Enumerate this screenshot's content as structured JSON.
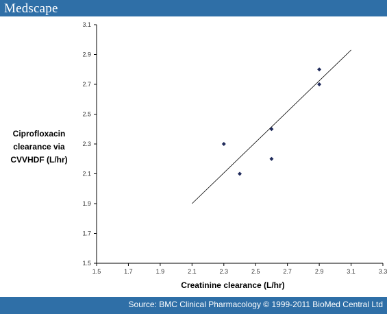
{
  "header": {
    "logo_text": "Medscape"
  },
  "footer": {
    "source_text": "Source: BMC Clinical Pharmacology © 1999-2011 BioMed Central Ltd"
  },
  "colors": {
    "bar": "#2f6fa7",
    "marker": "#1f2a5a",
    "axis": "#000000",
    "trend": "#000000"
  },
  "chart_data": {
    "type": "scatter",
    "xlabel": "Creatinine clearance (L/hr)",
    "ylabel": "Ciprofloxacin clearance via CVVHDF (L/hr)",
    "ylabel_lines": [
      "Ciprofloxacin",
      "clearance via",
      "CVVHDF (L/hr)"
    ],
    "xlim": [
      1.5,
      3.3
    ],
    "ylim": [
      1.5,
      3.1
    ],
    "x_ticks": [
      "1.5",
      "1.7",
      "1.9",
      "2.1",
      "2.3",
      "2.5",
      "2.7",
      "2.9",
      "3.1",
      "3.3"
    ],
    "y_ticks": [
      "1.5",
      "1.7",
      "1.9",
      "2.1",
      "2.3",
      "2.5",
      "2.7",
      "2.9",
      "3.1"
    ],
    "grid": false,
    "points": [
      {
        "x": 2.3,
        "y": 2.3
      },
      {
        "x": 2.4,
        "y": 2.1
      },
      {
        "x": 2.6,
        "y": 2.4
      },
      {
        "x": 2.6,
        "y": 2.2
      },
      {
        "x": 2.9,
        "y": 2.8
      },
      {
        "x": 2.9,
        "y": 2.7
      }
    ],
    "trendline": {
      "x": [
        2.1,
        3.1
      ],
      "y": [
        1.9,
        2.93
      ]
    }
  }
}
